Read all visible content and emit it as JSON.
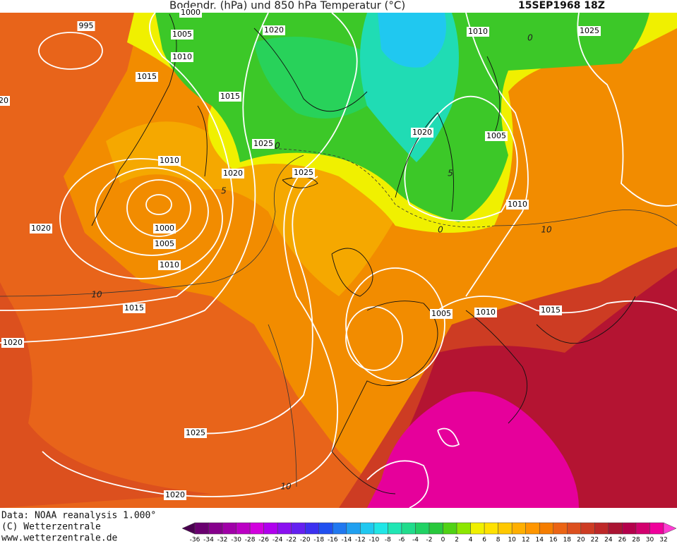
{
  "header": {
    "title": "Bodendr. (hPa) und 850 hPa Temperatur (°C)",
    "date": "15SEP1968 18Z"
  },
  "isobar_labels": [
    "1000",
    "995",
    "1005",
    "1020",
    "1010",
    "1025",
    "1010",
    "1015",
    "1015",
    "20",
    "1020",
    "1005",
    "1025",
    "1010",
    "1020",
    "1025",
    "1010",
    "1020",
    "1000",
    "1005",
    "1010",
    "1015",
    "1005",
    "1010",
    "1015",
    "1020",
    "1025",
    "1020"
  ],
  "temperature_labels": [
    "10",
    "10",
    "10",
    "5",
    "5",
    "0",
    "0",
    "0"
  ],
  "footer": {
    "data": "Data: NOAA reanalysis 1.000°",
    "copyright": "(C) Wetterzentrale",
    "url": "www.wetterzentrale.de"
  },
  "colorbar": {
    "labels": [
      -36,
      -34,
      -32,
      -30,
      -28,
      -26,
      -24,
      -22,
      -20,
      -18,
      -16,
      -14,
      -12,
      -10,
      -8,
      -6,
      -4,
      -2,
      0,
      2,
      4,
      6,
      8,
      10,
      12,
      14,
      16,
      18,
      20,
      22,
      24,
      26,
      28,
      30,
      32
    ],
    "colors": [
      "#4a0050",
      "#6a0070",
      "#86008c",
      "#a000a8",
      "#bb00c4",
      "#d200de",
      "#b000ee",
      "#8a10f0",
      "#6420f0",
      "#3c30f0",
      "#2050f0",
      "#2078f0",
      "#20a0f0",
      "#20c8f0",
      "#20e6e6",
      "#20e6b4",
      "#20dc8c",
      "#20d264",
      "#28c83c",
      "#50d214",
      "#8ce600",
      "#f0f000",
      "#ffe100",
      "#ffc800",
      "#ffaf00",
      "#ff9600",
      "#f57d00",
      "#eb6414",
      "#dc501e",
      "#cd3c23",
      "#be2828",
      "#aa1432",
      "#b4004b",
      "#d2006e",
      "#f0009b",
      "#ff3cd2"
    ]
  }
}
